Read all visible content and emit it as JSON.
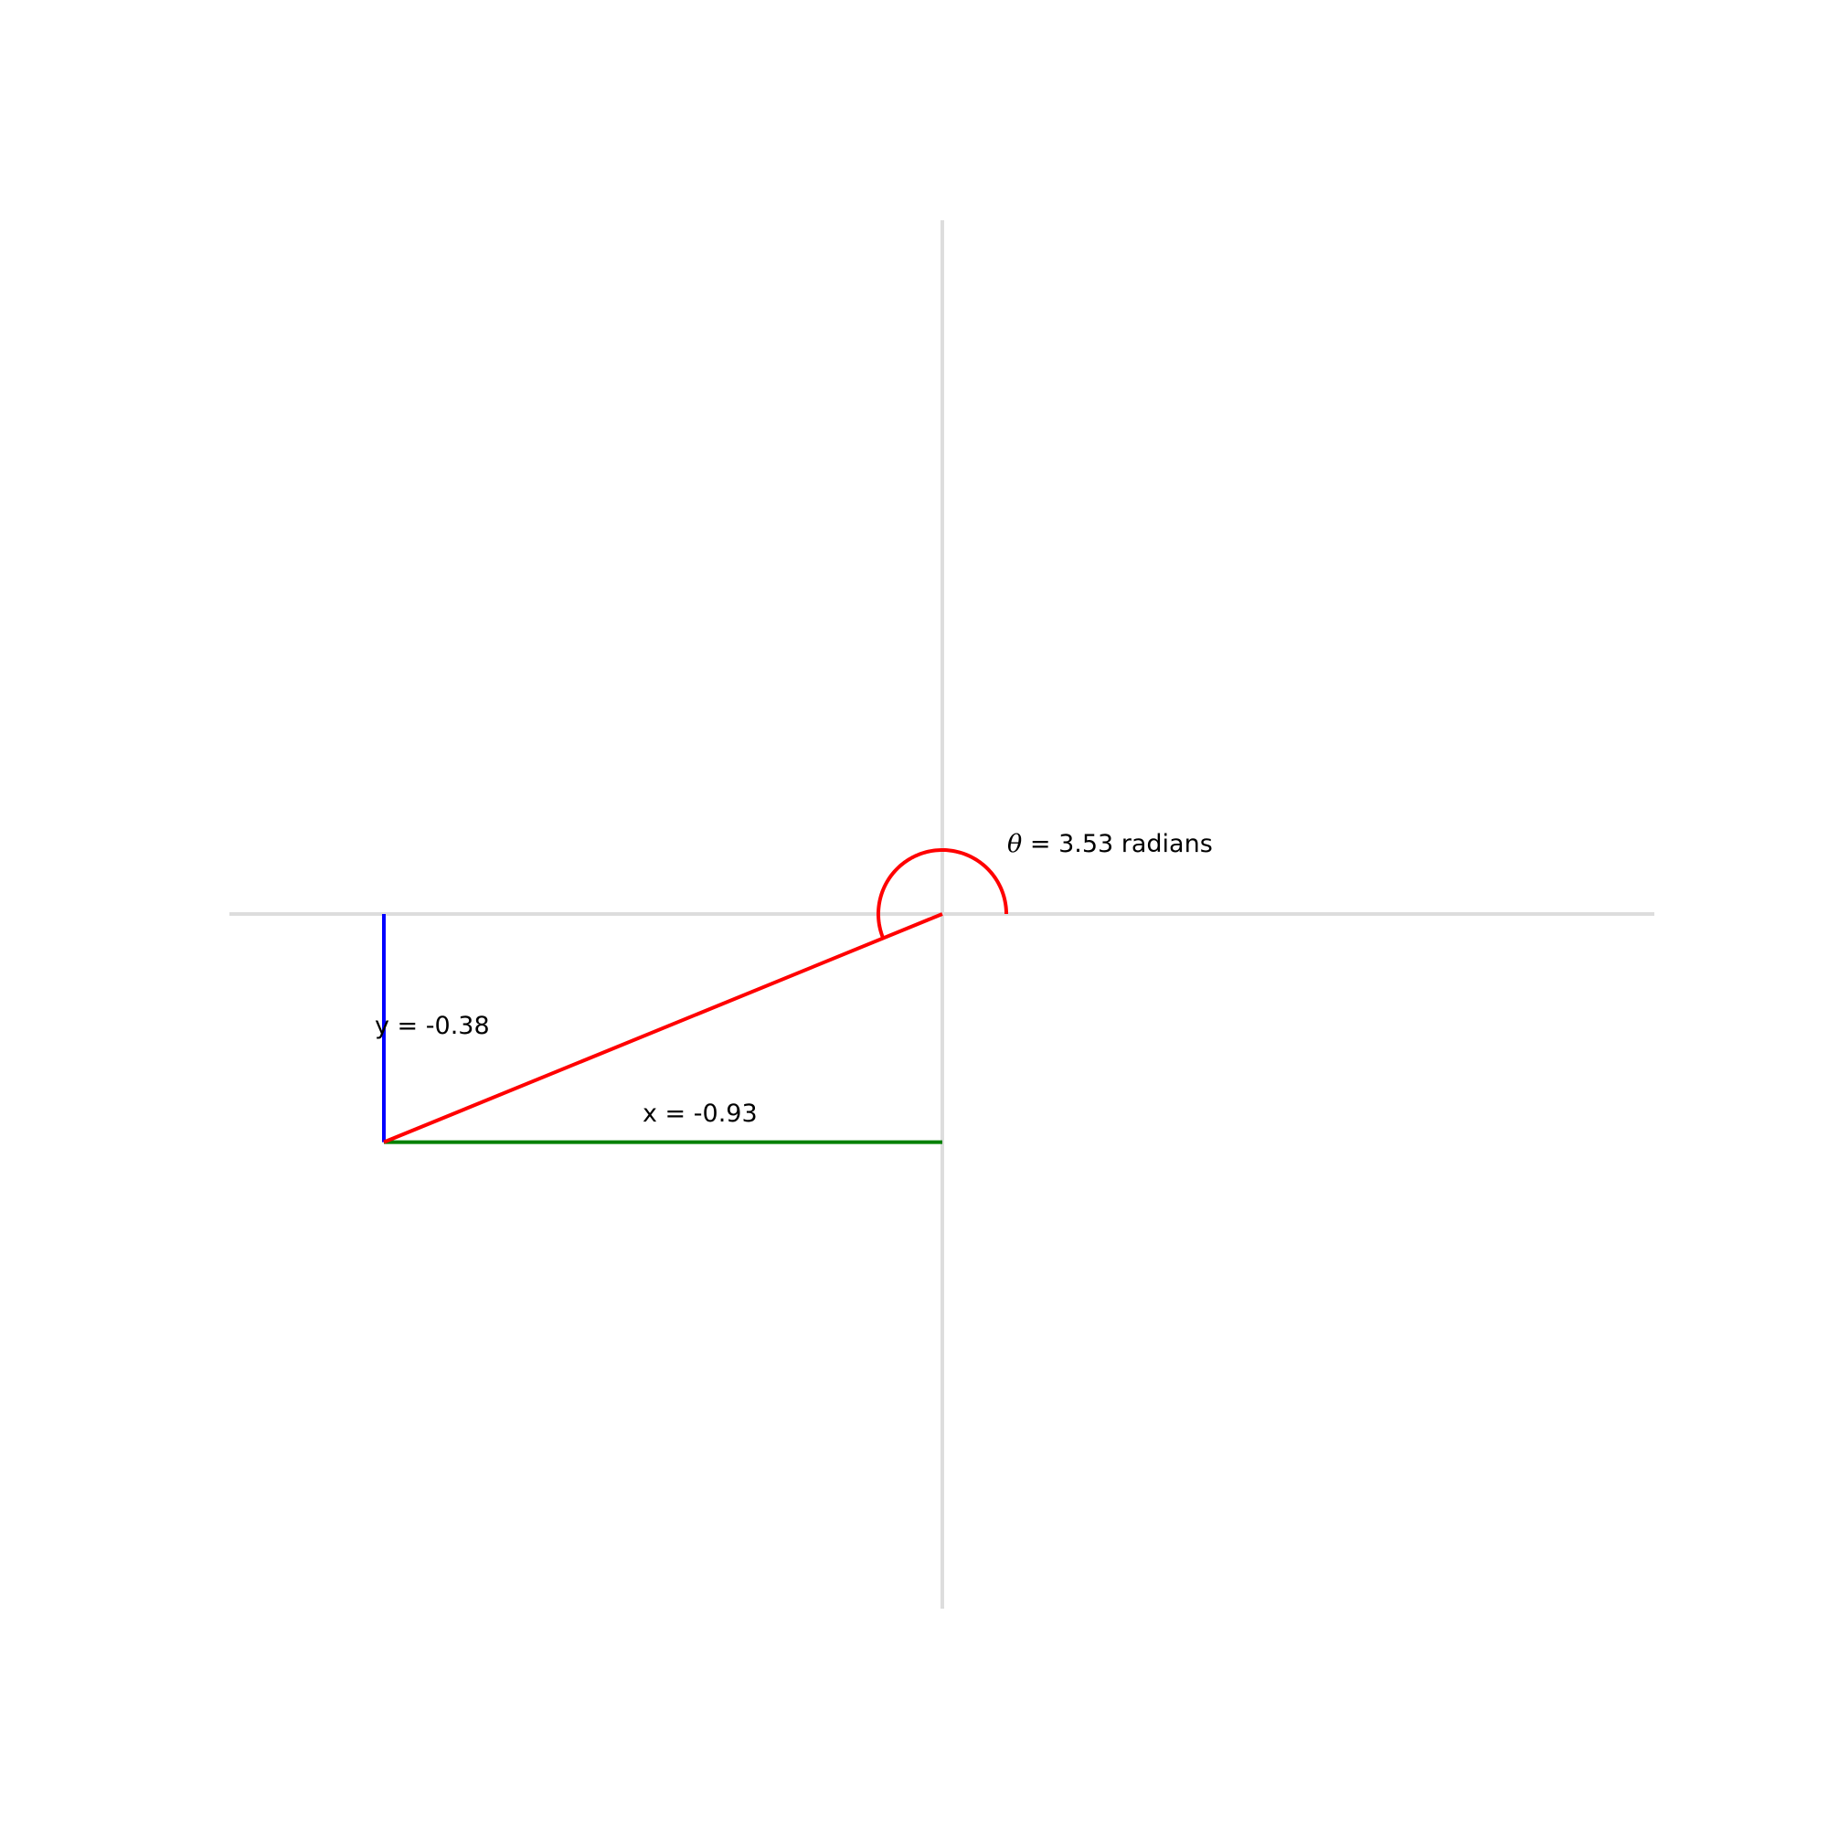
{
  "diagram": {
    "angle_label": {
      "symbol": "θ",
      "equals": " = ",
      "value": "3.53",
      "unit": " radians"
    },
    "y_label": "y = -0.38",
    "x_label": "x = -0.93"
  },
  "values": {
    "theta": 3.53,
    "x": -0.93,
    "y": -0.38,
    "radius": 1.0
  },
  "colors": {
    "axes": "#dddddd",
    "radius_line": "#ff0000",
    "angle_arc": "#ff0000",
    "y_leg": "#0000ff",
    "x_leg": "#008000",
    "text": "#000000",
    "background": "#ffffff"
  }
}
